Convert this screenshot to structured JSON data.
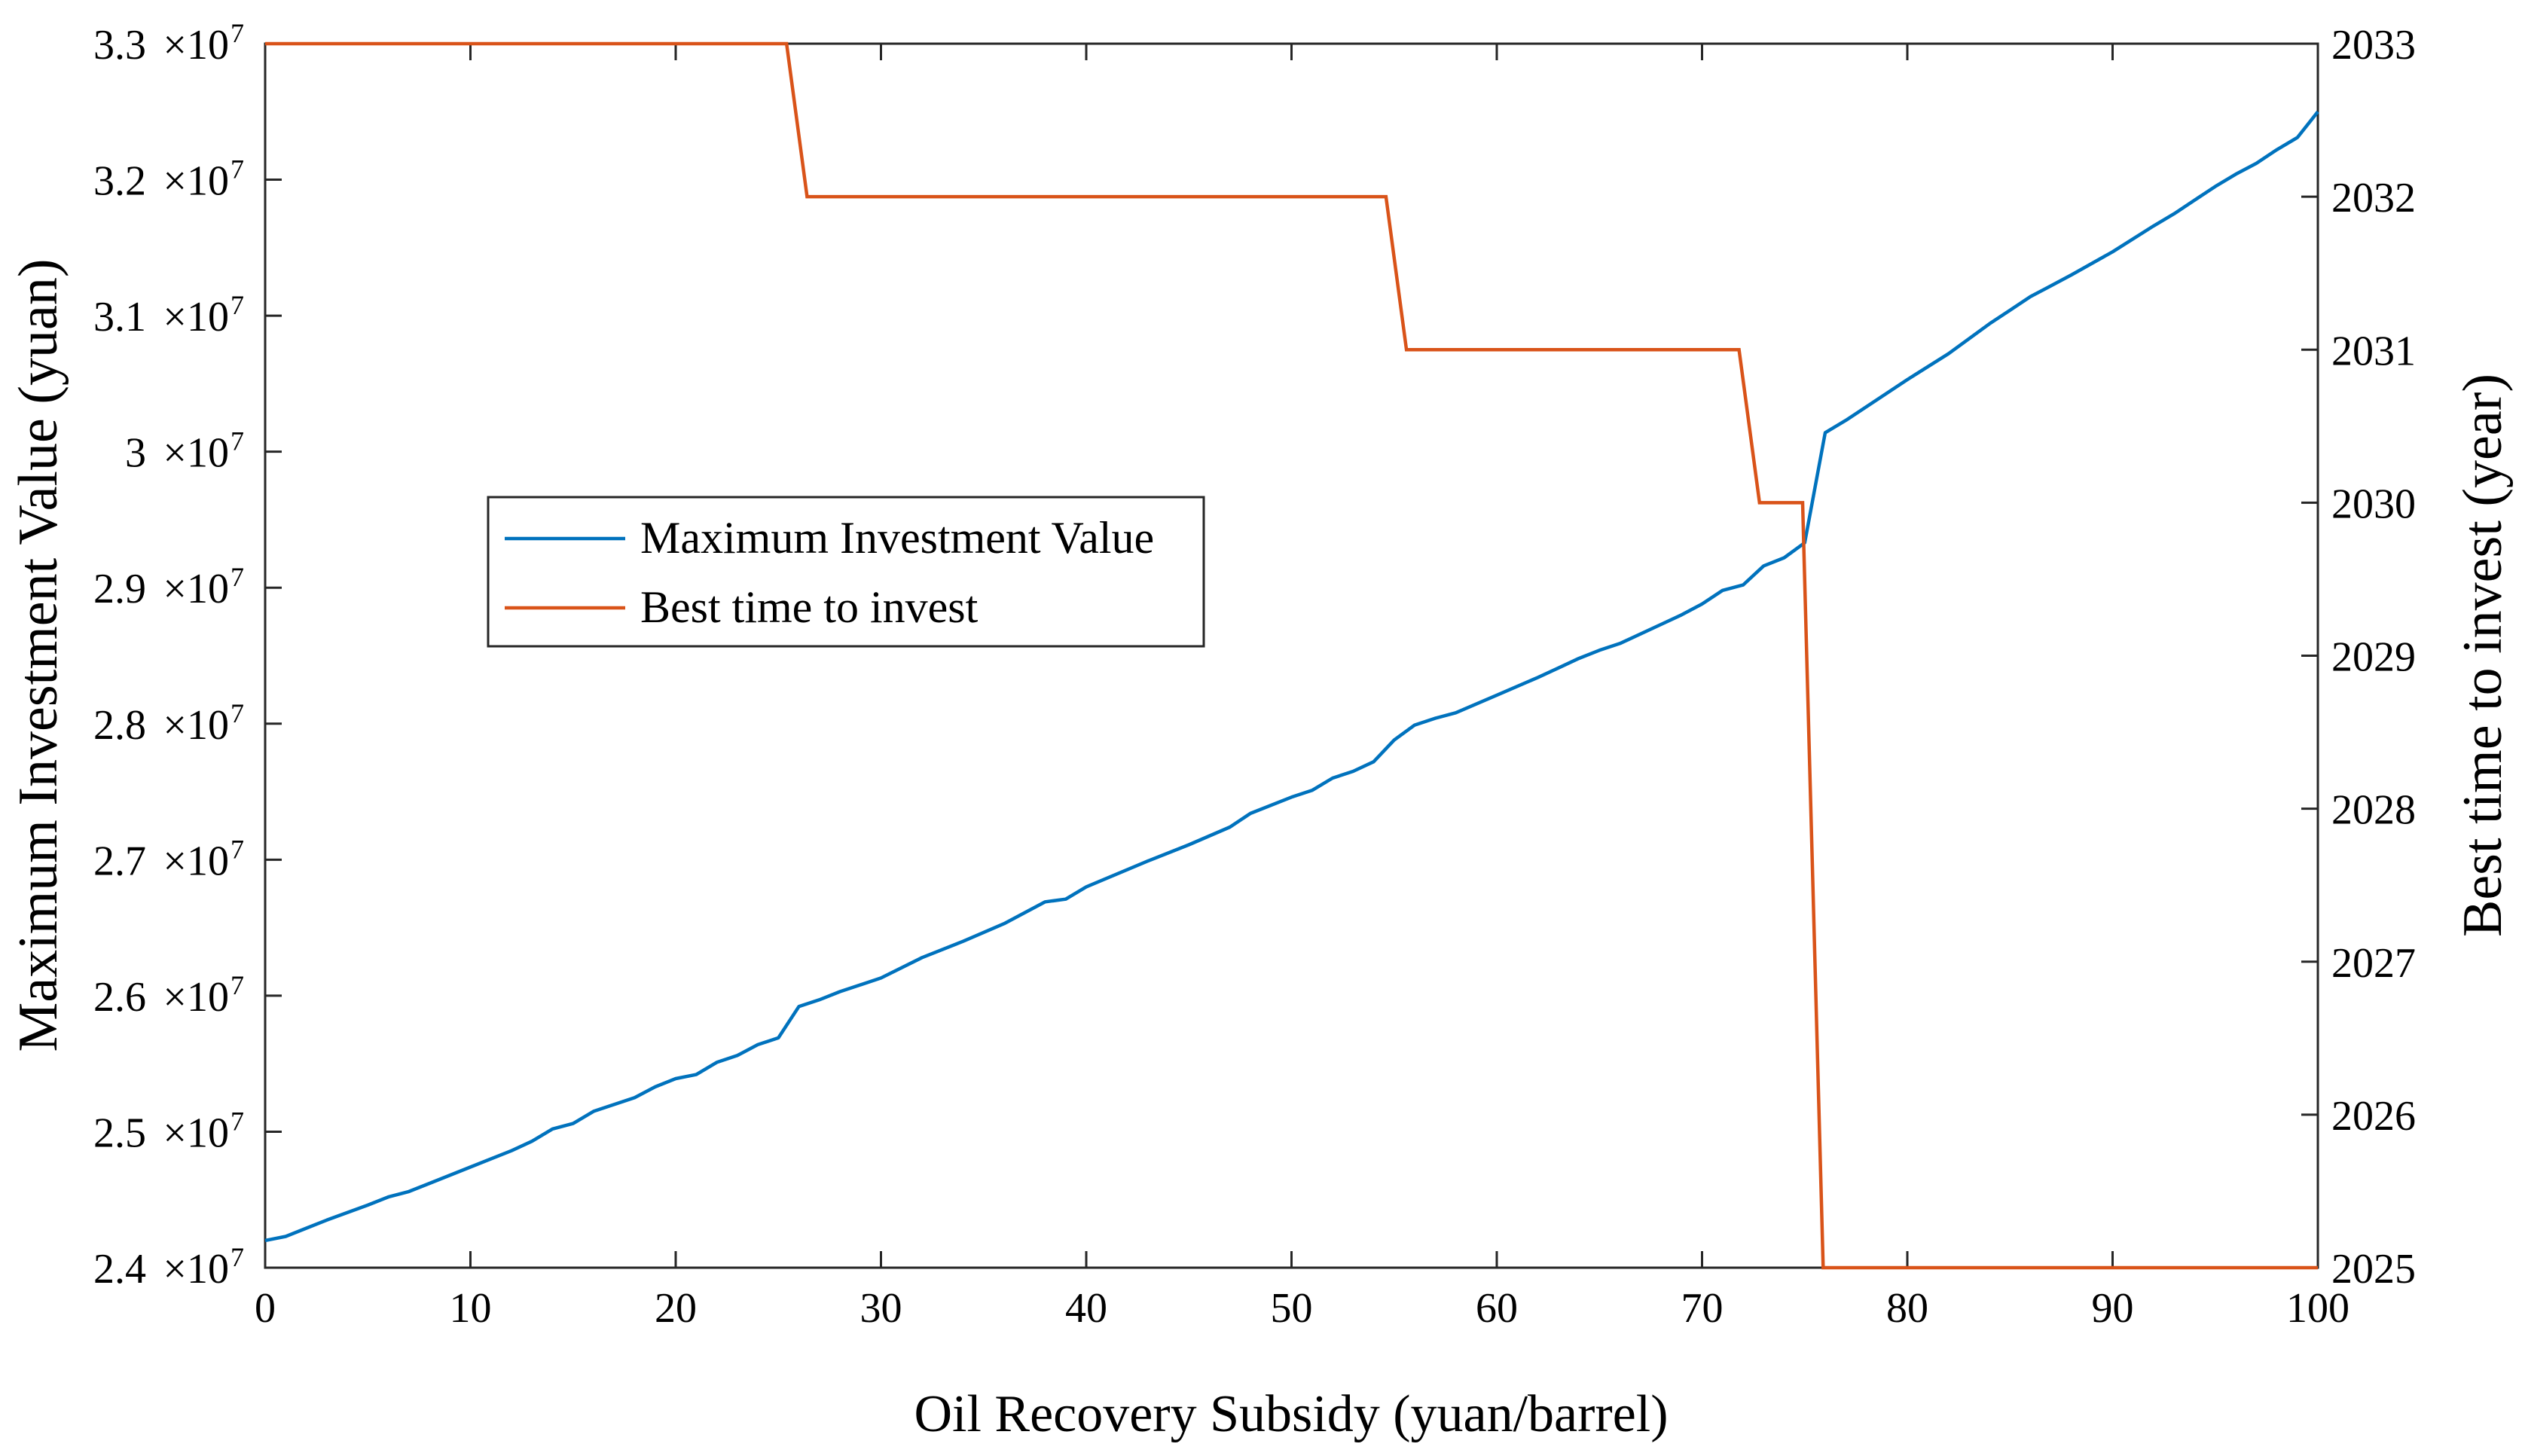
{
  "chart_data": {
    "type": "line",
    "xlabel": "Oil Recovery Subsidy (yuan/barrel)",
    "ylabel": "Maximum Investment Value (yuan)",
    "y2label": "Best time to invest (year)",
    "xlim": [
      0,
      100
    ],
    "ylim": [
      24000000,
      33000000
    ],
    "y2lim": [
      2025,
      2033
    ],
    "x_ticks": [
      0,
      10,
      20,
      30,
      40,
      50,
      60,
      70,
      80,
      90,
      100
    ],
    "x_tick_labels": [
      "0",
      "10",
      "20",
      "30",
      "40",
      "50",
      "60",
      "70",
      "80",
      "90",
      "100"
    ],
    "y_ticks": [
      24000000,
      25000000,
      26000000,
      27000000,
      28000000,
      29000000,
      30000000,
      31000000,
      32000000,
      33000000
    ],
    "y_tick_labels": [
      {
        "mantissa": "2.4",
        "base": "×10",
        "exp": "7"
      },
      {
        "mantissa": "2.5",
        "base": "×10",
        "exp": "7"
      },
      {
        "mantissa": "2.6",
        "base": "×10",
        "exp": "7"
      },
      {
        "mantissa": "2.7",
        "base": "×10",
        "exp": "7"
      },
      {
        "mantissa": "2.8",
        "base": "×10",
        "exp": "7"
      },
      {
        "mantissa": "2.9",
        "base": "×10",
        "exp": "7"
      },
      {
        "mantissa": "3",
        "base": "×10",
        "exp": "7"
      },
      {
        "mantissa": "3.1",
        "base": "×10",
        "exp": "7"
      },
      {
        "mantissa": "3.2",
        "base": "×10",
        "exp": "7"
      },
      {
        "mantissa": "3.3",
        "base": "×10",
        "exp": "7"
      }
    ],
    "y2_ticks": [
      2025,
      2026,
      2027,
      2028,
      2029,
      2030,
      2031,
      2032,
      2033
    ],
    "y2_tick_labels": [
      "2025",
      "2026",
      "2027",
      "2028",
      "2029",
      "2030",
      "2031",
      "2032",
      "2033"
    ],
    "legend": {
      "placement": "center-left",
      "entries": [
        "Maximum Investment Value",
        "Best time to invest"
      ]
    },
    "series": [
      {
        "name": "Maximum Investment Value",
        "axis": "left",
        "color": "#0072BD",
        "x": [
          0,
          1,
          2,
          3,
          5,
          6,
          7,
          8,
          10,
          12,
          13,
          14,
          15,
          16,
          18,
          19,
          20,
          21,
          22,
          23,
          24,
          25,
          26,
          27,
          28,
          30,
          32,
          34,
          36,
          38,
          39,
          40,
          43,
          45,
          47,
          48,
          50,
          51,
          52,
          53,
          54,
          55,
          56,
          57,
          58,
          60,
          62,
          63,
          64,
          65,
          66,
          68,
          69,
          70,
          71,
          72,
          73,
          74,
          75,
          76,
          77,
          78,
          80,
          82,
          84,
          85,
          86,
          87,
          88,
          90,
          92,
          93,
          94,
          95,
          96,
          97,
          98,
          99,
          100
        ],
        "values": [
          24200000,
          24230000,
          24290000,
          24350000,
          24460000,
          24520000,
          24560000,
          24620000,
          24740000,
          24860000,
          24930000,
          25020000,
          25060000,
          25150000,
          25250000,
          25330000,
          25390000,
          25420000,
          25510000,
          25560000,
          25640000,
          25690000,
          25920000,
          25970000,
          26030000,
          26130000,
          26280000,
          26400000,
          26530000,
          26690000,
          26710000,
          26800000,
          26990000,
          27110000,
          27240000,
          27340000,
          27460000,
          27510000,
          27600000,
          27650000,
          27720000,
          27880000,
          27990000,
          28040000,
          28080000,
          28210000,
          28340000,
          28410000,
          28480000,
          28540000,
          28590000,
          28730000,
          28800000,
          28880000,
          28980000,
          29020000,
          29160000,
          29220000,
          29330000,
          30140000,
          30230000,
          30330000,
          30530000,
          30720000,
          30940000,
          31040000,
          31140000,
          31220000,
          31300000,
          31470000,
          31660000,
          31750000,
          31850000,
          31950000,
          32040000,
          32120000,
          32220000,
          32310000,
          32500000
        ]
      },
      {
        "name": "Best time to invest",
        "axis": "right",
        "color": "#D95319",
        "x": [
          0,
          25.4,
          26.4,
          54.6,
          55.6,
          71.8,
          72.8,
          74.9,
          75.9,
          100
        ],
        "values": [
          2033,
          2033,
          2032,
          2032,
          2031,
          2031,
          2030,
          2030,
          2025,
          2025
        ]
      }
    ]
  }
}
